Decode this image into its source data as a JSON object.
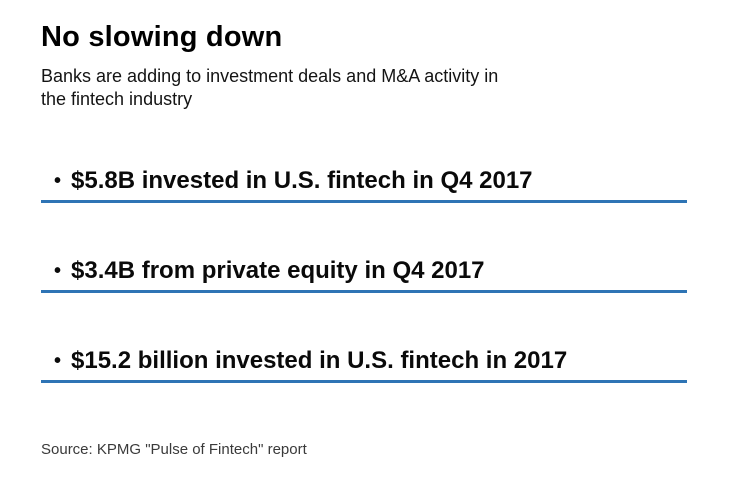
{
  "meta": {
    "background_color": "#ffffff",
    "text_color": "#0d0d0d",
    "rule_color": "#2e74b5",
    "source_text_color": "#3a3a3a"
  },
  "header": {
    "title": "No slowing down",
    "subtitle": "Banks are adding to investment deals and M&A activity in the fintech industry",
    "subtitle_lines": [
      "Banks are adding to investment deals and M&A activity in",
      "the fintech industry"
    ]
  },
  "facts": {
    "marker": "•",
    "items": [
      {
        "text": "$5.8B invested in U.S. fintech in Q4 2017"
      },
      {
        "text": "$3.4B from private equity in Q4 2017"
      },
      {
        "text": "$15.2 billion invested in U.S. fintech in 2017"
      }
    ]
  },
  "source": "Source: KPMG \"Pulse of Fintech\" report",
  "chart_data": {
    "type": "table",
    "title": "No slowing down",
    "subtitle": "Banks are adding to investment deals and M&A activity in the fintech industry",
    "unit": "USD billions",
    "rows": [
      {
        "label": "Invested in U.S. fintech in Q4 2017",
        "value": 5.8
      },
      {
        "label": "From private equity in Q4 2017",
        "value": 3.4
      },
      {
        "label": "Invested in U.S. fintech in 2017",
        "value": 15.2
      }
    ],
    "source": "Source: KPMG \"Pulse of Fintech\" report",
    "layout_hints": {
      "style": "fact-list with horizontal blue rules under each item",
      "grid": "off",
      "legend": "none"
    }
  }
}
